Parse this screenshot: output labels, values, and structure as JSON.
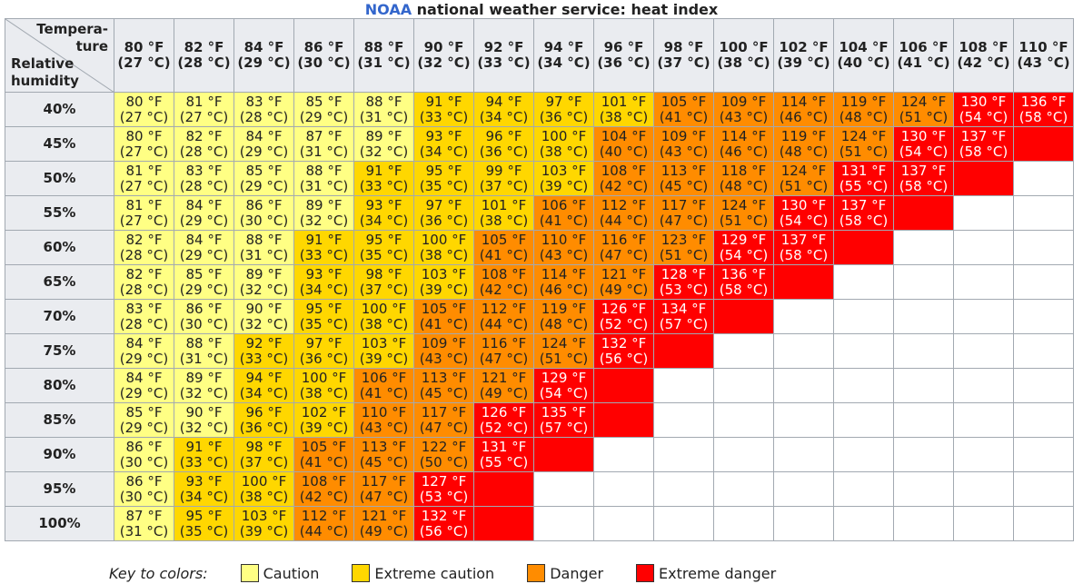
{
  "title": {
    "brand": "NOAA",
    "rest": " national weather service: heat index"
  },
  "corner": {
    "temperature": "Tempera-\nture",
    "humidity": "Relative\nhumidity"
  },
  "colors": {
    "1": "#ffff84",
    "2": "#ffd700",
    "3": "#ff8c00",
    "4": "#ff0000"
  },
  "columns": [
    "80 °F\n(27 °C)",
    "82 °F\n(28 °C)",
    "84 °F\n(29 °C)",
    "86 °F\n(30 °C)",
    "88 °F\n(31 °C)",
    "90 °F\n(32 °C)",
    "92 °F\n(33 °C)",
    "94 °F\n(34 °C)",
    "96 °F\n(36 °C)",
    "98 °F\n(37 °C)",
    "100 °F\n(38 °C)",
    "102 °F\n(39 °C)",
    "104 °F\n(40 °C)",
    "106 °F\n(41 °C)",
    "108 °F\n(42 °C)",
    "110 °F\n(43 °C)"
  ],
  "rows": [
    {
      "label": "40%",
      "cells": [
        [
          "80 °F\n(27 °C)",
          1
        ],
        [
          "81 °F\n(27 °C)",
          1
        ],
        [
          "83 °F\n(28 °C)",
          1
        ],
        [
          "85 °F\n(29 °C)",
          1
        ],
        [
          "88 °F\n(31 °C)",
          1
        ],
        [
          "91 °F\n(33 °C)",
          2
        ],
        [
          "94 °F\n(34 °C)",
          2
        ],
        [
          "97 °F\n(36 °C)",
          2
        ],
        [
          "101 °F\n(38 °C)",
          2
        ],
        [
          "105 °F\n(41 °C)",
          3
        ],
        [
          "109 °F\n(43 °C)",
          3
        ],
        [
          "114 °F\n(46 °C)",
          3
        ],
        [
          "119 °F\n(48 °C)",
          3
        ],
        [
          "124 °F\n(51 °C)",
          3
        ],
        [
          "130 °F\n(54 °C)",
          4
        ],
        [
          "136 °F\n(58 °C)",
          4
        ]
      ]
    },
    {
      "label": "45%",
      "cells": [
        [
          "80 °F\n(27 °C)",
          1
        ],
        [
          "82 °F\n(28 °C)",
          1
        ],
        [
          "84 °F\n(29 °C)",
          1
        ],
        [
          "87 °F\n(31 °C)",
          1
        ],
        [
          "89 °F\n(32 °C)",
          1
        ],
        [
          "93 °F\n(34 °C)",
          2
        ],
        [
          "96 °F\n(36 °C)",
          2
        ],
        [
          "100 °F\n(38 °C)",
          2
        ],
        [
          "104 °F\n(40 °C)",
          3
        ],
        [
          "109 °F\n(43 °C)",
          3
        ],
        [
          "114 °F\n(46 °C)",
          3
        ],
        [
          "119 °F\n(48 °C)",
          3
        ],
        [
          "124 °F\n(51 °C)",
          3
        ],
        [
          "130 °F\n(54 °C)",
          4
        ],
        [
          "137 °F\n(58 °C)",
          4
        ],
        [
          "",
          4
        ]
      ]
    },
    {
      "label": "50%",
      "cells": [
        [
          "81 °F\n(27 °C)",
          1
        ],
        [
          "83 °F\n(28 °C)",
          1
        ],
        [
          "85 °F\n(29 °C)",
          1
        ],
        [
          "88 °F\n(31 °C)",
          1
        ],
        [
          "91 °F\n(33 °C)",
          2
        ],
        [
          "95 °F\n(35 °C)",
          2
        ],
        [
          "99 °F\n(37 °C)",
          2
        ],
        [
          "103 °F\n(39 °C)",
          2
        ],
        [
          "108 °F\n(42 °C)",
          3
        ],
        [
          "113 °F\n(45 °C)",
          3
        ],
        [
          "118 °F\n(48 °C)",
          3
        ],
        [
          "124 °F\n(51 °C)",
          3
        ],
        [
          "131 °F\n(55 °C)",
          4
        ],
        [
          "137 °F\n(58 °C)",
          4
        ],
        [
          "",
          4
        ]
      ]
    },
    {
      "label": "55%",
      "cells": [
        [
          "81 °F\n(27 °C)",
          1
        ],
        [
          "84 °F\n(29 °C)",
          1
        ],
        [
          "86 °F\n(30 °C)",
          1
        ],
        [
          "89 °F\n(32 °C)",
          1
        ],
        [
          "93 °F\n(34 °C)",
          2
        ],
        [
          "97 °F\n(36 °C)",
          2
        ],
        [
          "101 °F\n(38 °C)",
          2
        ],
        [
          "106 °F\n(41 °C)",
          3
        ],
        [
          "112 °F\n(44 °C)",
          3
        ],
        [
          "117 °F\n(47 °C)",
          3
        ],
        [
          "124 °F\n(51 °C)",
          3
        ],
        [
          "130 °F\n(54 °C)",
          4
        ],
        [
          "137 °F\n(58 °C)",
          4
        ],
        [
          "",
          4
        ]
      ]
    },
    {
      "label": "60%",
      "cells": [
        [
          "82 °F\n(28 °C)",
          1
        ],
        [
          "84 °F\n(29 °C)",
          1
        ],
        [
          "88 °F\n(31 °C)",
          1
        ],
        [
          "91 °F\n(33 °C)",
          2
        ],
        [
          "95 °F\n(35 °C)",
          2
        ],
        [
          "100 °F\n(38 °C)",
          2
        ],
        [
          "105 °F\n(41 °C)",
          3
        ],
        [
          "110 °F\n(43 °C)",
          3
        ],
        [
          "116 °F\n(47 °C)",
          3
        ],
        [
          "123 °F\n(51 °C)",
          3
        ],
        [
          "129 °F\n(54 °C)",
          4
        ],
        [
          "137 °F\n(58 °C)",
          4
        ],
        [
          "",
          4
        ]
      ]
    },
    {
      "label": "65%",
      "cells": [
        [
          "82 °F\n(28 °C)",
          1
        ],
        [
          "85 °F\n(29 °C)",
          1
        ],
        [
          "89 °F\n(32 °C)",
          1
        ],
        [
          "93 °F\n(34 °C)",
          2
        ],
        [
          "98 °F\n(37 °C)",
          2
        ],
        [
          "103 °F\n(39 °C)",
          2
        ],
        [
          "108 °F\n(42 °C)",
          3
        ],
        [
          "114 °F\n(46 °C)",
          3
        ],
        [
          "121 °F\n(49 °C)",
          3
        ],
        [
          "128 °F\n(53 °C)",
          4
        ],
        [
          "136 °F\n(58 °C)",
          4
        ],
        [
          "",
          4
        ]
      ]
    },
    {
      "label": "70%",
      "cells": [
        [
          "83 °F\n(28 °C)",
          1
        ],
        [
          "86 °F\n(30 °C)",
          1
        ],
        [
          "90 °F\n(32 °C)",
          1
        ],
        [
          "95 °F\n(35 °C)",
          2
        ],
        [
          "100 °F\n(38 °C)",
          2
        ],
        [
          "105 °F\n(41 °C)",
          3
        ],
        [
          "112 °F\n(44 °C)",
          3
        ],
        [
          "119 °F\n(48 °C)",
          3
        ],
        [
          "126 °F\n(52 °C)",
          4
        ],
        [
          "134 °F\n(57 °C)",
          4
        ],
        [
          "",
          4
        ]
      ]
    },
    {
      "label": "75%",
      "cells": [
        [
          "84 °F\n(29 °C)",
          1
        ],
        [
          "88 °F\n(31 °C)",
          1
        ],
        [
          "92 °F\n(33 °C)",
          2
        ],
        [
          "97 °F\n(36 °C)",
          2
        ],
        [
          "103 °F\n(39 °C)",
          2
        ],
        [
          "109 °F\n(43 °C)",
          3
        ],
        [
          "116 °F\n(47 °C)",
          3
        ],
        [
          "124 °F\n(51 °C)",
          3
        ],
        [
          "132 °F\n(56 °C)",
          4
        ],
        [
          "",
          4
        ]
      ]
    },
    {
      "label": "80%",
      "cells": [
        [
          "84 °F\n(29 °C)",
          1
        ],
        [
          "89 °F\n(32 °C)",
          1
        ],
        [
          "94 °F\n(34 °C)",
          2
        ],
        [
          "100 °F\n(38 °C)",
          2
        ],
        [
          "106 °F\n(41 °C)",
          3
        ],
        [
          "113 °F\n(45 °C)",
          3
        ],
        [
          "121 °F\n(49 °C)",
          3
        ],
        [
          "129 °F\n(54 °C)",
          4
        ],
        [
          "",
          4
        ]
      ]
    },
    {
      "label": "85%",
      "cells": [
        [
          "85 °F\n(29 °C)",
          1
        ],
        [
          "90 °F\n(32 °C)",
          1
        ],
        [
          "96 °F\n(36 °C)",
          2
        ],
        [
          "102 °F\n(39 °C)",
          2
        ],
        [
          "110 °F\n(43 °C)",
          3
        ],
        [
          "117 °F\n(47 °C)",
          3
        ],
        [
          "126 °F\n(52 °C)",
          4
        ],
        [
          "135 °F\n(57 °C)",
          4
        ],
        [
          "",
          4
        ]
      ]
    },
    {
      "label": "90%",
      "cells": [
        [
          "86 °F\n(30 °C)",
          1
        ],
        [
          "91 °F\n(33 °C)",
          2
        ],
        [
          "98 °F\n(37 °C)",
          2
        ],
        [
          "105 °F\n(41 °C)",
          3
        ],
        [
          "113 °F\n(45 °C)",
          3
        ],
        [
          "122 °F\n(50 °C)",
          3
        ],
        [
          "131 °F\n(55 °C)",
          4
        ],
        [
          "",
          4
        ]
      ]
    },
    {
      "label": "95%",
      "cells": [
        [
          "86 °F\n(30 °C)",
          1
        ],
        [
          "93 °F\n(34 °C)",
          2
        ],
        [
          "100 °F\n(38 °C)",
          2
        ],
        [
          "108 °F\n(42 °C)",
          3
        ],
        [
          "117 °F\n(47 °C)",
          3
        ],
        [
          "127 °F\n(53 °C)",
          4
        ],
        [
          "",
          4
        ]
      ]
    },
    {
      "label": "100%",
      "cells": [
        [
          "87 °F\n(31 °C)",
          1
        ],
        [
          "95 °F\n(35 °C)",
          2
        ],
        [
          "103 °F\n(39 °C)",
          2
        ],
        [
          "112 °F\n(44 °C)",
          3
        ],
        [
          "121 °F\n(49 °C)",
          3
        ],
        [
          "132 °F\n(56 °C)",
          4
        ],
        [
          "",
          4
        ]
      ]
    }
  ],
  "key": {
    "label": "Key to colors:",
    "items": [
      {
        "label": "Caution",
        "level": 1
      },
      {
        "label": "Extreme caution",
        "level": 2
      },
      {
        "label": "Danger",
        "level": 3
      },
      {
        "label": "Extreme danger",
        "level": 4
      }
    ]
  }
}
